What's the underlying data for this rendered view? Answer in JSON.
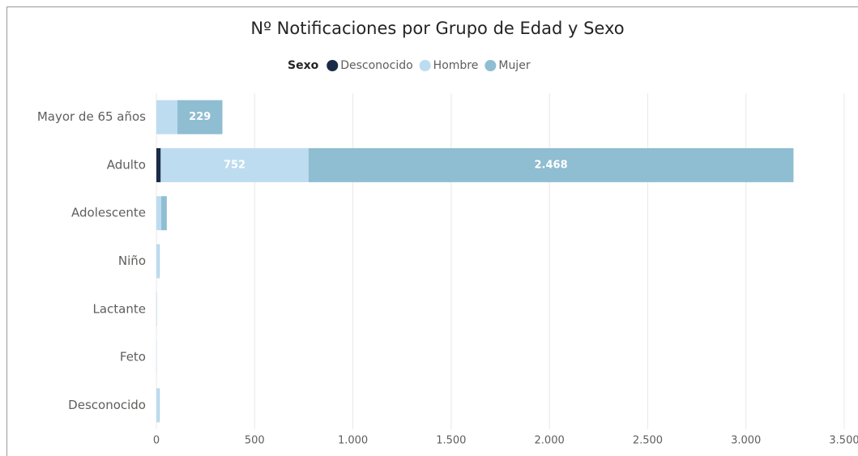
{
  "chart_data": {
    "type": "stacked_barh",
    "title": "Nº Notificaciones por Grupo de Edad y Sexo",
    "legend_title": "Sexo",
    "legend": "top",
    "categories": [
      "Mayor de 65 años",
      "Adulto",
      "Adolescente",
      "Niño",
      "Lactante",
      "Feto",
      "Desconocido"
    ],
    "series": [
      {
        "name": "Desconocido",
        "color": "#1b2a47",
        "values": [
          0,
          22,
          0,
          0,
          0,
          0,
          0
        ],
        "value_labels": [
          null,
          null,
          null,
          null,
          null,
          null,
          null
        ]
      },
      {
        "name": "Hombre",
        "color": "#bddcf0",
        "values": [
          107,
          752,
          25,
          15,
          3,
          2,
          15
        ],
        "value_labels": [
          null,
          "752",
          null,
          null,
          null,
          null,
          null
        ]
      },
      {
        "name": "Mujer",
        "color": "#8fbdd1",
        "values": [
          229,
          2468,
          28,
          2,
          0,
          0,
          2
        ],
        "value_labels": [
          "229",
          "2.468",
          null,
          null,
          null,
          null,
          null
        ]
      }
    ],
    "xlim": [
      0,
      3500
    ],
    "xticks": [
      0,
      500,
      {
        "value": 1000,
        "label": "1.000"
      },
      {
        "value": 1500,
        "label": "1.500"
      },
      {
        "value": 2000,
        "label": "2.000"
      },
      {
        "value": 2500,
        "label": "2.500"
      },
      {
        "value": 3000,
        "label": "3.000"
      },
      {
        "value": 3500,
        "label": "3.500"
      }
    ],
    "grid": true
  }
}
